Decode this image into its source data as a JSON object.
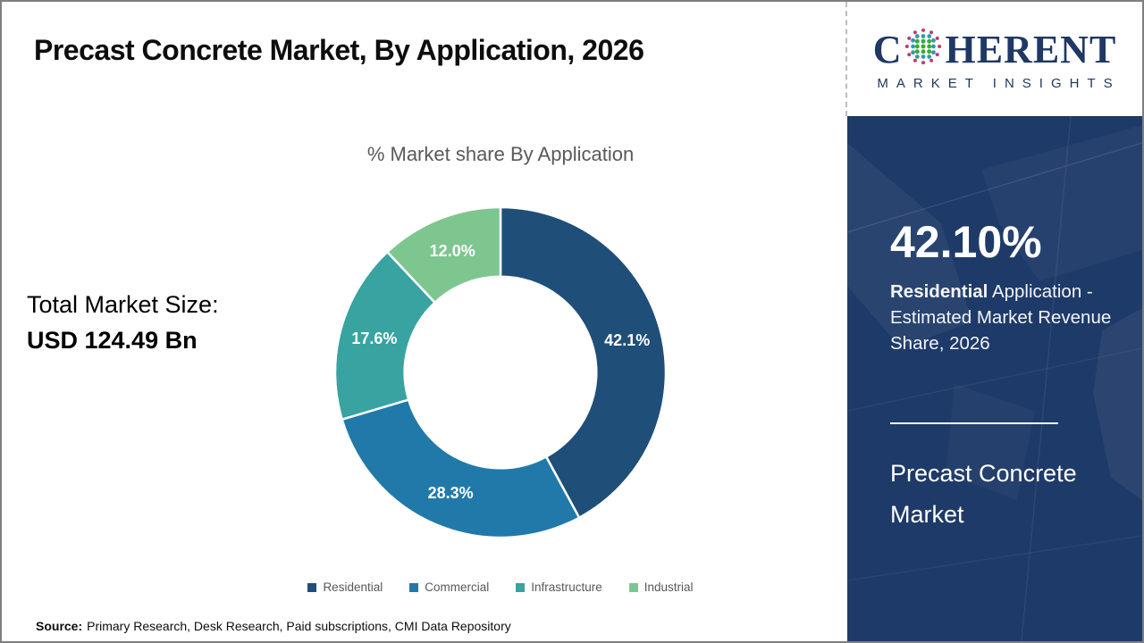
{
  "page": {
    "title": "Precast Concrete Market, By Application, 2026"
  },
  "logo": {
    "brand_prefix": "C",
    "brand_suffix": "HERENT",
    "brand_subtitle": "MARKET INSIGHTS",
    "navy": "#1f3864"
  },
  "total_market": {
    "label": "Total Market Size:",
    "value": "USD 124.49 Bn"
  },
  "sidebar": {
    "headline": "42.10%",
    "description_bold": "Residential",
    "description_rest": " Application - Estimated Market Revenue Share, 2026",
    "market_name": "Precast Concrete Market",
    "background": "#1e3a68"
  },
  "chart_data": {
    "type": "pie",
    "subtype": "donut",
    "title": "% Market share By Application",
    "categories": [
      "Residential",
      "Commercial",
      "Infrastructure",
      "Industrial"
    ],
    "values": [
      42.1,
      28.3,
      17.6,
      12.0
    ],
    "labels": [
      "42.1%",
      "28.3%",
      "17.6%",
      "12.0%"
    ],
    "colors": [
      "#1f4e79",
      "#2179a9",
      "#38a3a1",
      "#7ec690"
    ],
    "start_angle_deg": 0,
    "direction": "clockwise",
    "inner_radius_ratio": 0.58,
    "legend_position": "bottom",
    "label_color": "#ffffff",
    "separator_color": "#ffffff"
  },
  "source": {
    "label": "Source:",
    "text": "Primary Research, Desk Research, Paid subscriptions, CMI Data Repository"
  }
}
